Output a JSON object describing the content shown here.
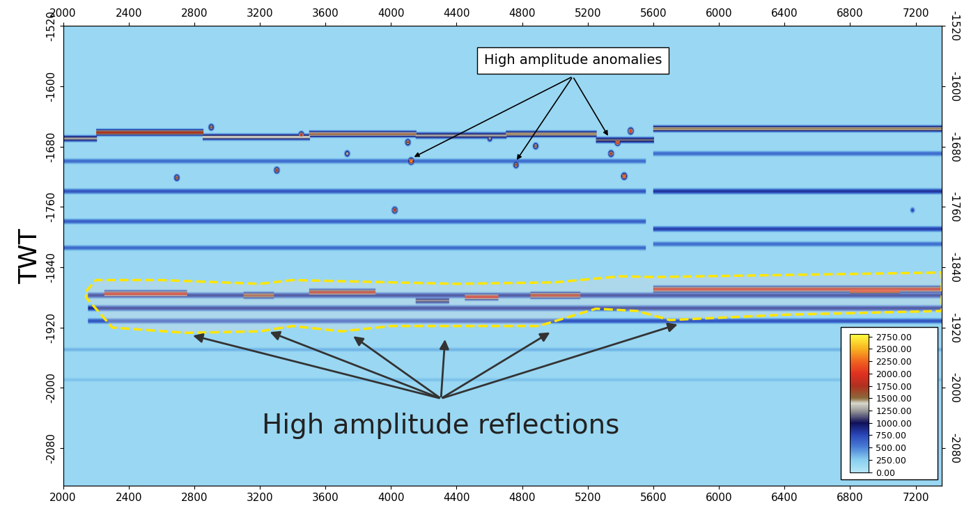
{
  "chart_data": {
    "type": "heatmap",
    "y_label": "TWT",
    "xlim": [
      2000,
      7360
    ],
    "xticks": [
      2000,
      2400,
      2800,
      3200,
      3600,
      4000,
      4400,
      4800,
      5200,
      5600,
      6000,
      6400,
      6800,
      7200
    ],
    "ylim": [
      -2130,
      -1520
    ],
    "yticks": [
      -2080,
      -2000,
      -1920,
      -1840,
      -1760,
      -1680,
      -1600,
      -1520
    ],
    "background_amplitude": 150,
    "reflectors": [
      {
        "x": [
          2000,
          2200
        ],
        "twt": -1670,
        "amplitude": 1300
      },
      {
        "x": [
          2200,
          2850
        ],
        "twt": -1662,
        "amplitude": 1800
      },
      {
        "x": [
          2850,
          3500
        ],
        "twt": -1668,
        "amplitude": 1400
      },
      {
        "x": [
          3500,
          4150
        ],
        "twt": -1664,
        "amplitude": 1600
      },
      {
        "x": [
          4150,
          4700
        ],
        "twt": -1666,
        "amplitude": 1300
      },
      {
        "x": [
          4700,
          5250
        ],
        "twt": -1664,
        "amplitude": 1500
      },
      {
        "x": [
          5250,
          5600
        ],
        "twt": -1672,
        "amplitude": 1200
      },
      {
        "x": [
          5600,
          7360
        ],
        "twt": -1657,
        "amplitude": 1500
      },
      {
        "x": [
          2000,
          5550
        ],
        "twt": -1700,
        "amplitude": 600
      },
      {
        "x": [
          2000,
          5550
        ],
        "twt": -1740,
        "amplitude": 700
      },
      {
        "x": [
          2000,
          5550
        ],
        "twt": -1780,
        "amplitude": 650
      },
      {
        "x": [
          2000,
          5550
        ],
        "twt": -1815,
        "amplitude": 600
      },
      {
        "x": [
          5600,
          7360
        ],
        "twt": -1690,
        "amplitude": 600
      },
      {
        "x": [
          5600,
          7360
        ],
        "twt": -1740,
        "amplitude": 850
      },
      {
        "x": [
          5600,
          7360
        ],
        "twt": -1790,
        "amplitude": 800
      },
      {
        "x": [
          5600,
          7360
        ],
        "twt": -1810,
        "amplitude": 600
      },
      {
        "x": [
          2150,
          7360
        ],
        "twt": -1878,
        "amplitude": 900
      },
      {
        "x": [
          2150,
          7360
        ],
        "twt": -1895,
        "amplitude": 900
      },
      {
        "x": [
          2150,
          7360
        ],
        "twt": -1912,
        "amplitude": 700
      },
      {
        "x": [
          2000,
          7360
        ],
        "twt": -1950,
        "amplitude": 350
      },
      {
        "x": [
          2000,
          7360
        ],
        "twt": -1990,
        "amplitude": 300
      },
      {
        "x": [
          2250,
          2750
        ],
        "twt": -1876,
        "amplitude": 2000
      },
      {
        "x": [
          3100,
          3280
        ],
        "twt": -1878,
        "amplitude": 1700
      },
      {
        "x": [
          3500,
          3900
        ],
        "twt": -1874,
        "amplitude": 1900
      },
      {
        "x": [
          4150,
          4350
        ],
        "twt": -1885,
        "amplitude": 1200
      },
      {
        "x": [
          4450,
          4650
        ],
        "twt": -1880,
        "amplitude": 2000
      },
      {
        "x": [
          4850,
          5150
        ],
        "twt": -1878,
        "amplitude": 1900
      },
      {
        "x": [
          5600,
          7360
        ],
        "twt": -1870,
        "amplitude": 2000
      },
      {
        "x": [
          6800,
          7100
        ],
        "twt": -1872,
        "amplitude": 2200
      }
    ],
    "anomalies": [
      {
        "x": 4120,
        "twt": -1700,
        "amplitude": 2600
      },
      {
        "x": 4100,
        "twt": -1675,
        "amplitude": 1800
      },
      {
        "x": 4020,
        "twt": -1765,
        "amplitude": 2000
      },
      {
        "x": 3300,
        "twt": -1712,
        "amplitude": 1900
      },
      {
        "x": 2690,
        "twt": -1722,
        "amplitude": 1800
      },
      {
        "x": 5380,
        "twt": -1675,
        "amplitude": 2400
      },
      {
        "x": 5420,
        "twt": -1720,
        "amplitude": 2500
      },
      {
        "x": 5340,
        "twt": -1690,
        "amplitude": 2000
      },
      {
        "x": 5460,
        "twt": -1660,
        "amplitude": 2300
      },
      {
        "x": 4760,
        "twt": -1705,
        "amplitude": 1800
      },
      {
        "x": 4880,
        "twt": -1680,
        "amplitude": 1700
      },
      {
        "x": 3450,
        "twt": -1665,
        "amplitude": 2100
      },
      {
        "x": 2900,
        "twt": -1655,
        "amplitude": 1700
      },
      {
        "x": 7180,
        "twt": -1765,
        "amplitude": 800
      },
      {
        "x": 3730,
        "twt": -1690,
        "amplitude": 1500
      },
      {
        "x": 4600,
        "twt": -1670,
        "amplitude": 1400
      }
    ],
    "zone": [
      [
        2140,
        -1872
      ],
      [
        2200,
        -1857
      ],
      [
        2600,
        -1857
      ],
      [
        3200,
        -1862
      ],
      [
        3400,
        -1857
      ],
      [
        4400,
        -1862
      ],
      [
        5000,
        -1860
      ],
      [
        5400,
        -1852
      ],
      [
        5600,
        -1853
      ],
      [
        7360,
        -1847
      ],
      [
        7360,
        -1898
      ],
      [
        6400,
        -1903
      ],
      [
        5700,
        -1910
      ],
      [
        5500,
        -1898
      ],
      [
        5250,
        -1895
      ],
      [
        4900,
        -1918
      ],
      [
        4000,
        -1918
      ],
      [
        3700,
        -1925
      ],
      [
        3400,
        -1918
      ],
      [
        3200,
        -1925
      ],
      [
        2750,
        -1927
      ],
      [
        2300,
        -1920
      ],
      [
        2140,
        -1880
      ]
    ],
    "annotations": [
      {
        "text": "High amplitude anomalies",
        "points": [
          [
            4130,
            -1695
          ],
          [
            4760,
            -1700
          ],
          [
            5330,
            -1668
          ]
        ]
      },
      {
        "text": "High amplitude reflections",
        "points": [
          [
            2780,
            -1930
          ],
          [
            3250,
            -1925
          ],
          [
            3760,
            -1930
          ],
          [
            4330,
            -1933
          ],
          [
            4980,
            -1925
          ],
          [
            5760,
            -1915
          ]
        ]
      }
    ],
    "colorbar": {
      "range": [
        0,
        2800
      ],
      "ticks": [
        {
          "value": 0,
          "label": "0.00"
        },
        {
          "value": 250,
          "label": "250.00"
        },
        {
          "value": 500,
          "label": "500.00"
        },
        {
          "value": 750,
          "label": "750.00"
        },
        {
          "value": 1000,
          "label": "1000.00"
        },
        {
          "value": 1250,
          "label": "1250.00"
        },
        {
          "value": 1500,
          "label": "1500.00"
        },
        {
          "value": 1750,
          "label": "1750.00"
        },
        {
          "value": 2000,
          "label": "2000.00"
        },
        {
          "value": 2250,
          "label": "2250.00"
        },
        {
          "value": 2500,
          "label": "2500.00"
        },
        {
          "value": 2750,
          "label": "2750.00"
        }
      ]
    }
  }
}
